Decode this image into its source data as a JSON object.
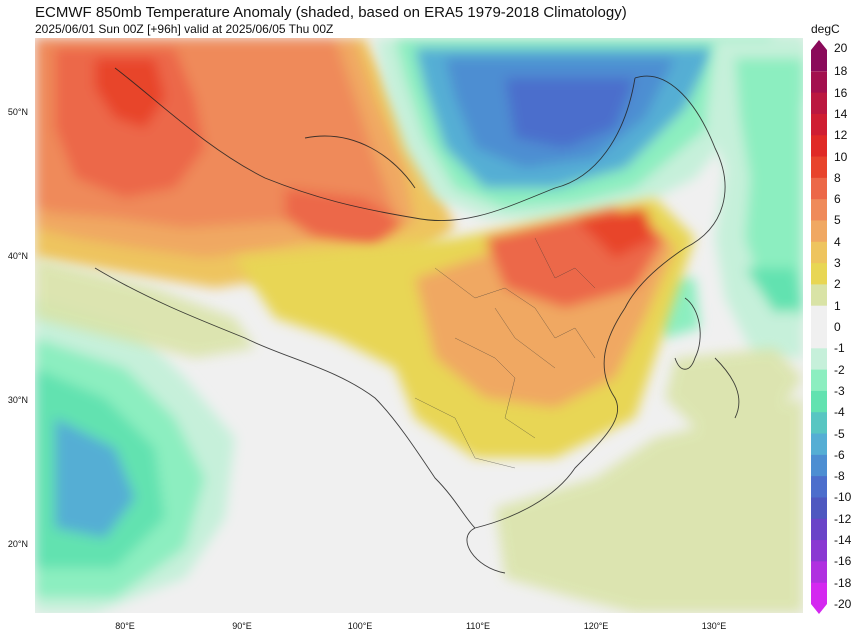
{
  "title": "ECMWF 850mb Temperature Anomaly (shaded, based on ERA5 1979-2018 Climatology)",
  "subtitle": "2025/06/01 Sun 00Z [+96h] valid at 2025/06/05 Thu 00Z",
  "colorbar": {
    "unit": "degC",
    "levels": [
      "20",
      "18",
      "16",
      "14",
      "12",
      "10",
      "8",
      "6",
      "5",
      "4",
      "3",
      "2",
      "1",
      "0",
      "-1",
      "-2",
      "-3",
      "-4",
      "-5",
      "-6",
      "-8",
      "-10",
      "-12",
      "-14",
      "-16",
      "-18",
      "-20"
    ],
    "colors": [
      "#8a0a5a",
      "#a3104e",
      "#bb1840",
      "#cf1e32",
      "#e02a26",
      "#e8442c",
      "#ec6848",
      "#ef8a5a",
      "#f0a862",
      "#eec45e",
      "#e8d654",
      "#d9e3a6",
      "#f0f0f0",
      "#f0f0f0",
      "#c6f0da",
      "#8ceec0",
      "#62e2b0",
      "#58c6c2",
      "#55aed4",
      "#4d8ed2",
      "#4c6ecc",
      "#4e58c0",
      "#6a44c8",
      "#8a38d2",
      "#b030e0",
      "#d428f0"
    ]
  },
  "axes": {
    "lat_labels": [
      "50°N",
      "40°N",
      "30°N",
      "20°N"
    ],
    "lon_labels": [
      "80°E",
      "90°E",
      "100°E",
      "110°E",
      "120°E",
      "130°E"
    ]
  }
}
